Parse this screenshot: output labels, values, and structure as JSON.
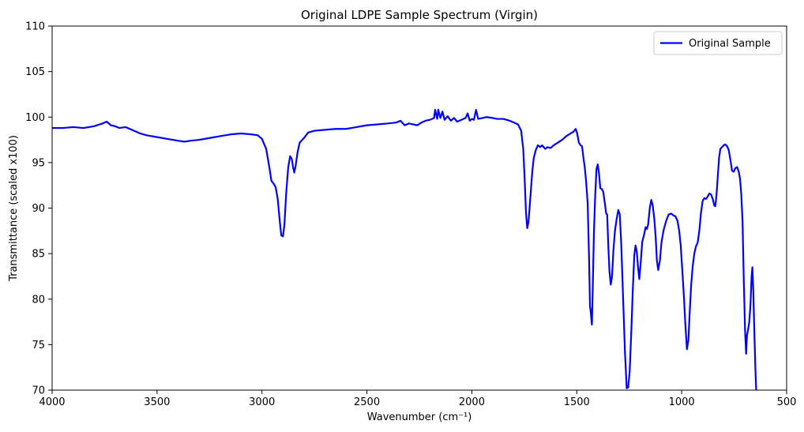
{
  "chart_data": {
    "type": "line",
    "title": "Original LDPE Sample Spectrum (Virgin)",
    "xlabel": "Wavenumber (cm⁻¹)",
    "ylabel": "Transmittance (scaled x100)",
    "xlim": [
      4000,
      500
    ],
    "ylim": [
      70,
      110
    ],
    "x_ticks": [
      4000,
      3500,
      3000,
      2500,
      2000,
      1500,
      1000,
      500
    ],
    "y_ticks": [
      70,
      75,
      80,
      85,
      90,
      95,
      100,
      105,
      110
    ],
    "grid": false,
    "legend_position": "top-right",
    "series": [
      {
        "name": "Original Sample",
        "color": "#0000ff",
        "points": [
          [
            4000,
            98.8
          ],
          [
            3950,
            98.8
          ],
          [
            3900,
            98.9
          ],
          [
            3850,
            98.8
          ],
          [
            3800,
            99.0
          ],
          [
            3760,
            99.3
          ],
          [
            3740,
            99.5
          ],
          [
            3720,
            99.1
          ],
          [
            3700,
            99.0
          ],
          [
            3680,
            98.8
          ],
          [
            3650,
            98.9
          ],
          [
            3620,
            98.6
          ],
          [
            3580,
            98.2
          ],
          [
            3550,
            98.0
          ],
          [
            3500,
            97.8
          ],
          [
            3450,
            97.6
          ],
          [
            3400,
            97.4
          ],
          [
            3370,
            97.3
          ],
          [
            3340,
            97.4
          ],
          [
            3300,
            97.5
          ],
          [
            3250,
            97.7
          ],
          [
            3200,
            97.9
          ],
          [
            3150,
            98.1
          ],
          [
            3100,
            98.2
          ],
          [
            3050,
            98.1
          ],
          [
            3020,
            98.0
          ],
          [
            3000,
            97.6
          ],
          [
            2980,
            96.5
          ],
          [
            2965,
            94.5
          ],
          [
            2955,
            93.0
          ],
          [
            2945,
            92.7
          ],
          [
            2935,
            92.3
          ],
          [
            2925,
            91.0
          ],
          [
            2915,
            88.5
          ],
          [
            2908,
            87.0
          ],
          [
            2900,
            86.9
          ],
          [
            2893,
            88.2
          ],
          [
            2885,
            91.5
          ],
          [
            2875,
            94.5
          ],
          [
            2866,
            95.7
          ],
          [
            2858,
            95.4
          ],
          [
            2852,
            94.5
          ],
          [
            2846,
            93.9
          ],
          [
            2840,
            94.6
          ],
          [
            2830,
            96.2
          ],
          [
            2820,
            97.2
          ],
          [
            2800,
            97.7
          ],
          [
            2780,
            98.3
          ],
          [
            2750,
            98.5
          ],
          [
            2700,
            98.6
          ],
          [
            2650,
            98.7
          ],
          [
            2600,
            98.7
          ],
          [
            2550,
            98.9
          ],
          [
            2500,
            99.1
          ],
          [
            2450,
            99.2
          ],
          [
            2400,
            99.3
          ],
          [
            2360,
            99.4
          ],
          [
            2340,
            99.6
          ],
          [
            2320,
            99.1
          ],
          [
            2300,
            99.3
          ],
          [
            2260,
            99.1
          ],
          [
            2240,
            99.4
          ],
          [
            2220,
            99.6
          ],
          [
            2200,
            99.7
          ],
          [
            2180,
            99.9
          ],
          [
            2175,
            100.8
          ],
          [
            2165,
            99.8
          ],
          [
            2160,
            100.8
          ],
          [
            2150,
            99.9
          ],
          [
            2140,
            100.6
          ],
          [
            2130,
            99.7
          ],
          [
            2115,
            100.1
          ],
          [
            2100,
            99.6
          ],
          [
            2085,
            99.9
          ],
          [
            2070,
            99.5
          ],
          [
            2050,
            99.7
          ],
          [
            2030,
            99.9
          ],
          [
            2020,
            100.4
          ],
          [
            2010,
            99.6
          ],
          [
            2000,
            99.8
          ],
          [
            1990,
            99.7
          ],
          [
            1980,
            100.8
          ],
          [
            1970,
            99.8
          ],
          [
            1950,
            99.9
          ],
          [
            1930,
            100.0
          ],
          [
            1900,
            99.9
          ],
          [
            1880,
            99.8
          ],
          [
            1850,
            99.8
          ],
          [
            1820,
            99.6
          ],
          [
            1800,
            99.4
          ],
          [
            1780,
            99.2
          ],
          [
            1765,
            98.5
          ],
          [
            1755,
            96.5
          ],
          [
            1748,
            93.0
          ],
          [
            1742,
            89.5
          ],
          [
            1736,
            87.8
          ],
          [
            1730,
            88.5
          ],
          [
            1720,
            91.5
          ],
          [
            1712,
            94.0
          ],
          [
            1705,
            95.5
          ],
          [
            1695,
            96.4
          ],
          [
            1685,
            96.9
          ],
          [
            1675,
            96.7
          ],
          [
            1665,
            96.9
          ],
          [
            1650,
            96.5
          ],
          [
            1640,
            96.7
          ],
          [
            1625,
            96.6
          ],
          [
            1610,
            96.9
          ],
          [
            1590,
            97.2
          ],
          [
            1570,
            97.5
          ],
          [
            1550,
            97.9
          ],
          [
            1530,
            98.2
          ],
          [
            1515,
            98.4
          ],
          [
            1505,
            98.7
          ],
          [
            1498,
            98.2
          ],
          [
            1490,
            97.2
          ],
          [
            1482,
            96.9
          ],
          [
            1475,
            96.8
          ],
          [
            1468,
            95.5
          ],
          [
            1462,
            94.5
          ],
          [
            1455,
            92.8
          ],
          [
            1448,
            90.5
          ],
          [
            1442,
            85.0
          ],
          [
            1437,
            79.2
          ],
          [
            1433,
            78.5
          ],
          [
            1428,
            77.2
          ],
          [
            1424,
            81.0
          ],
          [
            1418,
            87.5
          ],
          [
            1412,
            91.5
          ],
          [
            1406,
            94.3
          ],
          [
            1400,
            94.8
          ],
          [
            1394,
            93.8
          ],
          [
            1388,
            92.2
          ],
          [
            1381,
            92.1
          ],
          [
            1374,
            91.8
          ],
          [
            1366,
            90.5
          ],
          [
            1360,
            89.4
          ],
          [
            1355,
            89.3
          ],
          [
            1350,
            86.0
          ],
          [
            1344,
            83.0
          ],
          [
            1338,
            81.6
          ],
          [
            1332,
            82.5
          ],
          [
            1325,
            85.5
          ],
          [
            1318,
            87.5
          ],
          [
            1310,
            88.8
          ],
          [
            1302,
            89.8
          ],
          [
            1295,
            89.3
          ],
          [
            1288,
            86.0
          ],
          [
            1282,
            82.0
          ],
          [
            1276,
            78.0
          ],
          [
            1270,
            74.0
          ],
          [
            1262,
            70.2
          ],
          [
            1255,
            70.3
          ],
          [
            1248,
            72.0
          ],
          [
            1240,
            76.5
          ],
          [
            1233,
            81.0
          ],
          [
            1226,
            84.8
          ],
          [
            1220,
            85.9
          ],
          [
            1214,
            85.2
          ],
          [
            1208,
            83.5
          ],
          [
            1202,
            82.2
          ],
          [
            1196,
            83.8
          ],
          [
            1188,
            86.3
          ],
          [
            1180,
            87.0
          ],
          [
            1172,
            87.9
          ],
          [
            1166,
            87.7
          ],
          [
            1160,
            88.2
          ],
          [
            1152,
            90.0
          ],
          [
            1145,
            90.9
          ],
          [
            1138,
            90.3
          ],
          [
            1130,
            88.7
          ],
          [
            1124,
            86.8
          ],
          [
            1118,
            84.2
          ],
          [
            1112,
            83.2
          ],
          [
            1104,
            84.2
          ],
          [
            1096,
            86.3
          ],
          [
            1086,
            87.6
          ],
          [
            1074,
            88.6
          ],
          [
            1062,
            89.3
          ],
          [
            1050,
            89.4
          ],
          [
            1040,
            89.2
          ],
          [
            1030,
            89.1
          ],
          [
            1020,
            88.6
          ],
          [
            1012,
            87.5
          ],
          [
            1005,
            86.0
          ],
          [
            998,
            83.5
          ],
          [
            990,
            80.5
          ],
          [
            982,
            77.0
          ],
          [
            975,
            74.5
          ],
          [
            968,
            75.5
          ],
          [
            962,
            78.5
          ],
          [
            955,
            81.5
          ],
          [
            948,
            83.5
          ],
          [
            940,
            85.0
          ],
          [
            932,
            85.8
          ],
          [
            924,
            86.2
          ],
          [
            916,
            87.5
          ],
          [
            908,
            89.5
          ],
          [
            900,
            90.8
          ],
          [
            892,
            91.1
          ],
          [
            884,
            91.0
          ],
          [
            876,
            91.3
          ],
          [
            868,
            91.6
          ],
          [
            860,
            91.5
          ],
          [
            852,
            91.0
          ],
          [
            845,
            90.3
          ],
          [
            840,
            90.2
          ],
          [
            834,
            91.5
          ],
          [
            828,
            93.5
          ],
          [
            822,
            95.5
          ],
          [
            816,
            96.5
          ],
          [
            808,
            96.7
          ],
          [
            800,
            96.9
          ],
          [
            792,
            97.0
          ],
          [
            784,
            96.8
          ],
          [
            776,
            96.4
          ],
          [
            768,
            95.3
          ],
          [
            760,
            94.1
          ],
          [
            752,
            94.0
          ],
          [
            744,
            94.4
          ],
          [
            736,
            94.5
          ],
          [
            728,
            94.0
          ],
          [
            722,
            93.2
          ],
          [
            716,
            91.5
          ],
          [
            710,
            88.5
          ],
          [
            704,
            82.0
          ],
          [
            698,
            76.5
          ],
          [
            693,
            74.0
          ],
          [
            689,
            76.0
          ],
          [
            684,
            76.6
          ],
          [
            678,
            77.5
          ],
          [
            672,
            79.5
          ],
          [
            667,
            82.5
          ],
          [
            663,
            83.5
          ],
          [
            659,
            81.0
          ],
          [
            654,
            76.5
          ],
          [
            649,
            72.5
          ],
          [
            645,
            70.0
          ]
        ]
      }
    ]
  }
}
